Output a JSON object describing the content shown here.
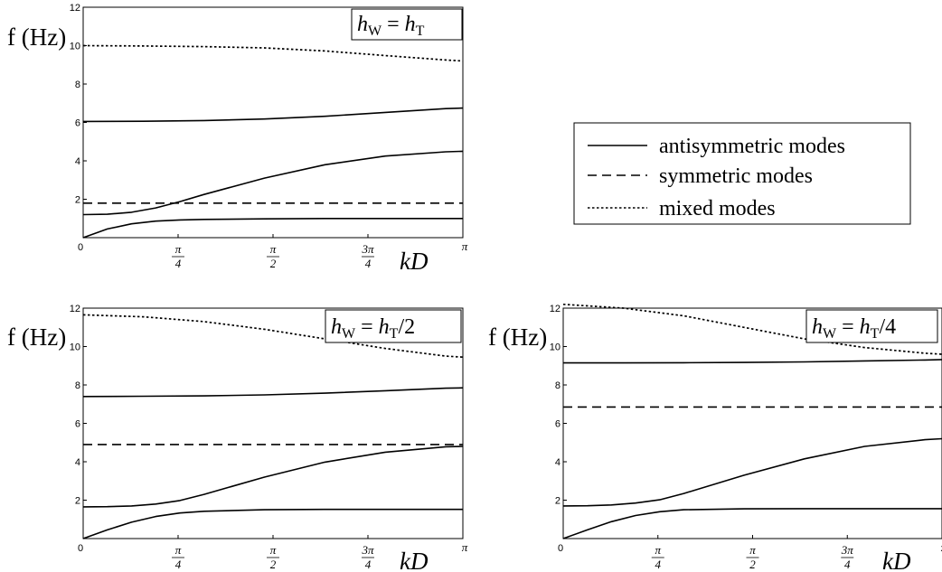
{
  "chart_data": [
    {
      "type": "line",
      "panel": "top-left",
      "title": "h_W = h_T",
      "title_parts": {
        "lhs": "h",
        "lhs_sub": "W",
        "rhs": "h",
        "rhs_sub": "T",
        "rhs_suffix": ""
      },
      "ylabel": "f (Hz)",
      "xlabel": "kD",
      "xlim": [
        0,
        3.14159
      ],
      "ylim": [
        0,
        12
      ],
      "x_ticks": [
        {
          "value": 0,
          "num": "0",
          "den": ""
        },
        {
          "value": 0.7854,
          "num": "π",
          "den": "4"
        },
        {
          "value": 1.5708,
          "num": "π",
          "den": "2"
        },
        {
          "value": 2.3562,
          "num": "3π",
          "den": "4"
        },
        {
          "value": 3.14159,
          "num": "π",
          "den": ""
        }
      ],
      "y_ticks": [
        "2",
        "4",
        "6",
        "8",
        "10",
        "12"
      ],
      "series": [
        {
          "mode": "antisymmetric",
          "x": [
            0,
            0.2,
            0.4,
            0.6,
            0.8,
            1.0,
            1.5,
            2.0,
            2.5,
            3.0,
            3.14159
          ],
          "y": [
            0,
            0.45,
            0.72,
            0.86,
            0.92,
            0.95,
            0.98,
            1.0,
            1.0,
            1.0,
            1.0
          ]
        },
        {
          "mode": "antisymmetric",
          "x": [
            0,
            0.2,
            0.4,
            0.6,
            0.8,
            1.0,
            1.5,
            2.0,
            2.5,
            3.0,
            3.14159
          ],
          "y": [
            1.2,
            1.22,
            1.32,
            1.55,
            1.88,
            2.25,
            3.1,
            3.8,
            4.25,
            4.47,
            4.5
          ]
        },
        {
          "mode": "antisymmetric",
          "x": [
            0,
            0.5,
            1.0,
            1.5,
            2.0,
            2.5,
            3.0,
            3.14159
          ],
          "y": [
            6.05,
            6.06,
            6.1,
            6.18,
            6.32,
            6.52,
            6.72,
            6.75
          ]
        },
        {
          "mode": "symmetric",
          "x": [
            0,
            3.14159
          ],
          "y": [
            1.8,
            1.8
          ]
        },
        {
          "mode": "mixed",
          "x": [
            0,
            0.5,
            1.0,
            1.5,
            2.0,
            2.5,
            3.0,
            3.14159
          ],
          "y": [
            10.0,
            9.98,
            9.95,
            9.88,
            9.72,
            9.48,
            9.25,
            9.2
          ]
        }
      ]
    },
    {
      "type": "line",
      "panel": "bottom-left",
      "title": "h_W = h_T/2",
      "title_parts": {
        "lhs": "h",
        "lhs_sub": "W",
        "rhs": "h",
        "rhs_sub": "T",
        "rhs_suffix": "/2"
      },
      "ylabel": "f (Hz)",
      "xlabel": "kD",
      "xlim": [
        0,
        3.14159
      ],
      "ylim": [
        0,
        12
      ],
      "x_ticks": [
        {
          "value": 0,
          "num": "0",
          "den": ""
        },
        {
          "value": 0.7854,
          "num": "π",
          "den": "4"
        },
        {
          "value": 1.5708,
          "num": "π",
          "den": "2"
        },
        {
          "value": 2.3562,
          "num": "3π",
          "den": "4"
        },
        {
          "value": 3.14159,
          "num": "π",
          "den": ""
        }
      ],
      "y_ticks": [
        "2",
        "4",
        "6",
        "8",
        "10",
        "12"
      ],
      "series": [
        {
          "mode": "antisymmetric",
          "x": [
            0,
            0.2,
            0.4,
            0.6,
            0.8,
            1.0,
            1.5,
            2.0,
            2.5,
            3.0,
            3.14159
          ],
          "y": [
            0,
            0.45,
            0.85,
            1.15,
            1.33,
            1.42,
            1.5,
            1.52,
            1.52,
            1.52,
            1.52
          ]
        },
        {
          "mode": "antisymmetric",
          "x": [
            0,
            0.2,
            0.4,
            0.6,
            0.8,
            1.0,
            1.5,
            2.0,
            2.5,
            3.0,
            3.14159
          ],
          "y": [
            1.65,
            1.66,
            1.7,
            1.8,
            1.98,
            2.3,
            3.2,
            3.98,
            4.5,
            4.78,
            4.8
          ]
        },
        {
          "mode": "antisymmetric",
          "x": [
            0,
            0.5,
            1.0,
            1.5,
            2.0,
            2.5,
            3.0,
            3.14159
          ],
          "y": [
            7.4,
            7.41,
            7.43,
            7.48,
            7.57,
            7.7,
            7.83,
            7.85
          ]
        },
        {
          "mode": "symmetric",
          "x": [
            0,
            3.14159
          ],
          "y": [
            4.9,
            4.9
          ]
        },
        {
          "mode": "mixed",
          "x": [
            0,
            0.5,
            1.0,
            1.5,
            2.0,
            2.5,
            3.0,
            3.14159
          ],
          "y": [
            11.65,
            11.55,
            11.3,
            10.9,
            10.4,
            9.9,
            9.5,
            9.45
          ]
        }
      ]
    },
    {
      "type": "line",
      "panel": "bottom-right",
      "title": "h_W = h_T/4",
      "title_parts": {
        "lhs": "h",
        "lhs_sub": "W",
        "rhs": "h",
        "rhs_sub": "T",
        "rhs_suffix": "/4"
      },
      "ylabel": "f (Hz)",
      "xlabel": "kD",
      "xlim": [
        0,
        3.14159
      ],
      "ylim": [
        0,
        12
      ],
      "x_ticks": [
        {
          "value": 0,
          "num": "0",
          "den": ""
        },
        {
          "value": 0.7854,
          "num": "π",
          "den": "4"
        },
        {
          "value": 1.5708,
          "num": "π",
          "den": "2"
        },
        {
          "value": 2.3562,
          "num": "3π",
          "den": "4"
        },
        {
          "value": 3.14159,
          "num": "π",
          "den": ""
        }
      ],
      "y_ticks": [
        "2",
        "4",
        "6",
        "8",
        "10",
        "12"
      ],
      "series": [
        {
          "mode": "antisymmetric",
          "x": [
            0,
            0.2,
            0.4,
            0.6,
            0.8,
            1.0,
            1.5,
            2.0,
            2.5,
            3.0,
            3.14159
          ],
          "y": [
            0,
            0.45,
            0.88,
            1.2,
            1.4,
            1.5,
            1.55,
            1.56,
            1.56,
            1.56,
            1.56
          ]
        },
        {
          "mode": "antisymmetric",
          "x": [
            0,
            0.2,
            0.4,
            0.6,
            0.8,
            1.0,
            1.5,
            2.0,
            2.5,
            3.0,
            3.14159
          ],
          "y": [
            1.7,
            1.71,
            1.75,
            1.85,
            2.02,
            2.35,
            3.3,
            4.15,
            4.8,
            5.15,
            5.2
          ]
        },
        {
          "mode": "antisymmetric",
          "x": [
            0,
            0.5,
            1.0,
            1.5,
            2.0,
            2.5,
            3.0,
            3.14159
          ],
          "y": [
            9.15,
            9.15,
            9.16,
            9.17,
            9.2,
            9.25,
            9.3,
            9.32
          ]
        },
        {
          "mode": "symmetric",
          "x": [
            0,
            3.14159
          ],
          "y": [
            6.85,
            6.85
          ]
        },
        {
          "mode": "mixed",
          "x": [
            0,
            0.5,
            1.0,
            1.5,
            2.0,
            2.5,
            3.0,
            3.14159
          ],
          "y": [
            12.2,
            12.0,
            11.6,
            11.0,
            10.4,
            9.95,
            9.65,
            9.6
          ]
        }
      ]
    }
  ],
  "legend": {
    "items": [
      {
        "mode": "antisymmetric",
        "label": "antisymmetric modes",
        "dash": "solid"
      },
      {
        "mode": "symmetric",
        "label": "symmetric modes",
        "dash": "dashed"
      },
      {
        "mode": "mixed",
        "label": "mixed modes",
        "dash": "dotted"
      }
    ]
  }
}
